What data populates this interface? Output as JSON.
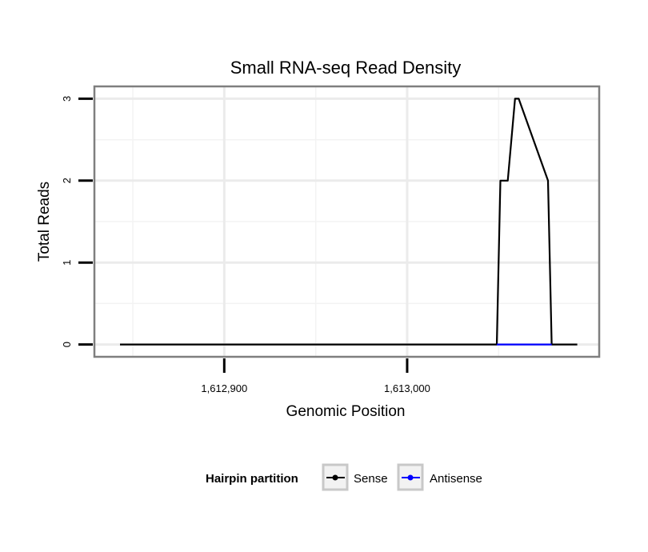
{
  "chart_data": {
    "type": "line",
    "title": "Small RNA-seq Read Density",
    "xlabel": "Genomic Position",
    "ylabel": "Total Reads",
    "xlim": [
      1612829,
      1613105
    ],
    "ylim": [
      -0.15,
      3.15
    ],
    "x_ticks": [
      1612900,
      1613000
    ],
    "x_tick_labels": [
      "1,612,900",
      "1,613,000"
    ],
    "y_ticks": [
      0,
      1,
      2,
      3
    ],
    "y_tick_labels": [
      "0",
      "1",
      "2",
      "3"
    ],
    "grid": true,
    "legend_title": "Hairpin partition",
    "legend_position": "bottom",
    "series": [
      {
        "name": "Sense",
        "color": "#000000",
        "x": [
          1612843,
          1613049,
          1613051,
          1613055,
          1613059,
          1613061,
          1613077,
          1613079,
          1613083,
          1613093
        ],
        "y": [
          0,
          0,
          2,
          2,
          3,
          3,
          2,
          0,
          0,
          0
        ]
      },
      {
        "name": "Antisense",
        "color": "#0000ff",
        "x": [
          1613049,
          1613079
        ],
        "y": [
          0,
          0
        ]
      }
    ]
  }
}
